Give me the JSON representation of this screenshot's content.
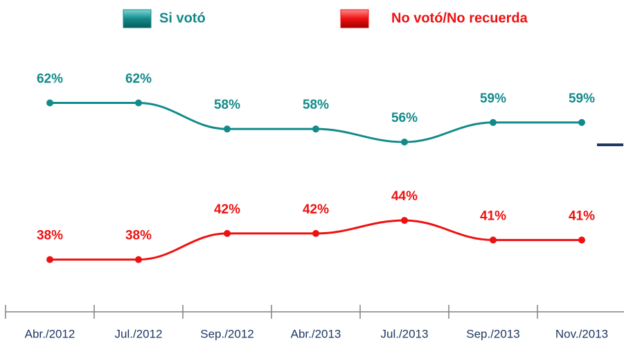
{
  "chart_data": {
    "type": "line",
    "categories": [
      "Abr./2012",
      "Jul./2012",
      "Sep./2012",
      "Abr./2013",
      "Jul./2013",
      "Sep./2013",
      "Nov./2013"
    ],
    "series": [
      {
        "name": "Si votó",
        "color": "#138a8a",
        "values": [
          62,
          62,
          58,
          58,
          56,
          59,
          59
        ],
        "value_labels": [
          "62%",
          "62%",
          "58%",
          "58%",
          "56%",
          "59%",
          "59%"
        ]
      },
      {
        "name": "No votó/No recuerda",
        "color": "#ee1111",
        "values": [
          38,
          38,
          42,
          42,
          44,
          41,
          41
        ],
        "value_labels": [
          "38%",
          "38%",
          "42%",
          "42%",
          "44%",
          "41%",
          "41%"
        ]
      }
    ],
    "ylim": [
      30,
      75
    ],
    "legend": "top"
  }
}
